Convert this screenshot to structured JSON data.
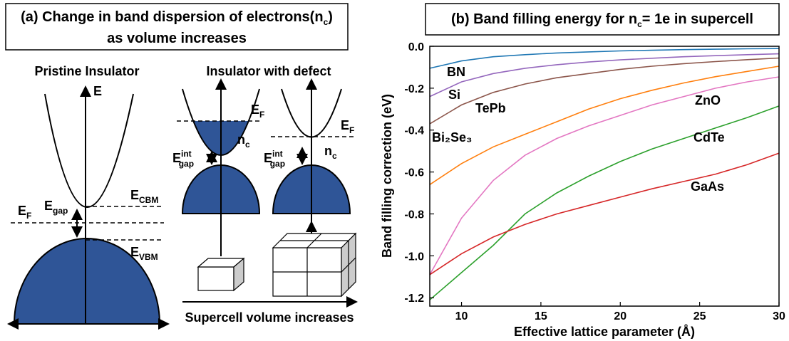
{
  "diagram": {
    "title_pre": "(a) Change in band dispersion of electrons(n",
    "title_sub": "c",
    "title_post": ")",
    "title_line2": "as volume increases",
    "pristine_label": "Pristine Insulator",
    "defect_label": "Insulator with defect",
    "energy_axis": "E",
    "cbm": {
      "main": "E",
      "sub": "CBM"
    },
    "fermi": {
      "main": "E",
      "sub": "F"
    },
    "gap": {
      "main": "E",
      "sub": "gap"
    },
    "vbm": {
      "main": "E",
      "sub": "VBM"
    },
    "defect_fermi": {
      "main": "E",
      "sub": "F"
    },
    "defect_nc": {
      "main": "n",
      "sub": "c"
    },
    "defect_gap": {
      "main": "E",
      "sup": "int",
      "sub": "gap"
    },
    "defect_fermi_2": {
      "main": "E",
      "sub": "F"
    },
    "defect_nc_2": {
      "main": "n",
      "sub": "c"
    },
    "defect_gap_2": {
      "main": "E",
      "sup": "int",
      "sub": "gap"
    },
    "volume_label": "Supercell volume increases"
  },
  "chart_data": {
    "type": "line",
    "title": [
      "(b) Band filling energy for n",
      "c",
      "= 1e in supercell"
    ],
    "x_label": "Effective lattice parameter (Å)",
    "y_label": "Band filling correction (eV)",
    "x": [
      8,
      10,
      12,
      14,
      16,
      18,
      20,
      22,
      24,
      26,
      28,
      30
    ],
    "series": [
      {
        "name": "BN",
        "color": "#1f77b4",
        "values": [
          -0.105,
          -0.07,
          -0.05,
          -0.04,
          -0.032,
          -0.027,
          -0.022,
          -0.019,
          -0.016,
          -0.014,
          -0.012,
          -0.011
        ]
      },
      {
        "name": "Si",
        "color": "#9467bd",
        "values": [
          -0.24,
          -0.17,
          -0.13,
          -0.105,
          -0.088,
          -0.075,
          -0.065,
          -0.057,
          -0.05,
          -0.045,
          -0.04,
          -0.036
        ]
      },
      {
        "name": "TePb",
        "color": "#8c564b",
        "values": [
          -0.37,
          -0.28,
          -0.22,
          -0.18,
          -0.15,
          -0.13,
          -0.11,
          -0.095,
          -0.083,
          -0.073,
          -0.064,
          -0.056
        ]
      },
      {
        "name": "Bi₂Se₃",
        "color": "#ff7f0e",
        "values": [
          -0.66,
          -0.56,
          -0.48,
          -0.42,
          -0.36,
          -0.3,
          -0.25,
          -0.21,
          -0.175,
          -0.145,
          -0.12,
          -0.095
        ]
      },
      {
        "name": "ZnO",
        "color": "#e377c2",
        "values": [
          -1.09,
          -0.82,
          -0.64,
          -0.52,
          -0.44,
          -0.38,
          -0.33,
          -0.28,
          -0.24,
          -0.2,
          -0.17,
          -0.146
        ]
      },
      {
        "name": "CdTe",
        "color": "#2ca02c",
        "values": [
          -1.21,
          -1.08,
          -0.95,
          -0.8,
          -0.7,
          -0.62,
          -0.55,
          -0.49,
          -0.44,
          -0.39,
          -0.34,
          -0.285
        ]
      },
      {
        "name": "GaAs",
        "color": "#d62728",
        "values": [
          -1.09,
          -0.99,
          -0.91,
          -0.85,
          -0.8,
          -0.76,
          -0.72,
          -0.68,
          -0.645,
          -0.61,
          -0.565,
          -0.51
        ]
      }
    ],
    "xlim": [
      8,
      30
    ],
    "ylim": [
      -1.24,
      0
    ],
    "xticks": [
      10,
      15,
      20,
      25,
      30
    ],
    "yticks": [
      {
        "value": 0,
        "label": "0.0"
      },
      -0.2,
      -0.4,
      -0.6,
      -0.8,
      {
        "value": -1,
        "label": "-1.0"
      },
      -1.2
    ],
    "grid": false
  }
}
